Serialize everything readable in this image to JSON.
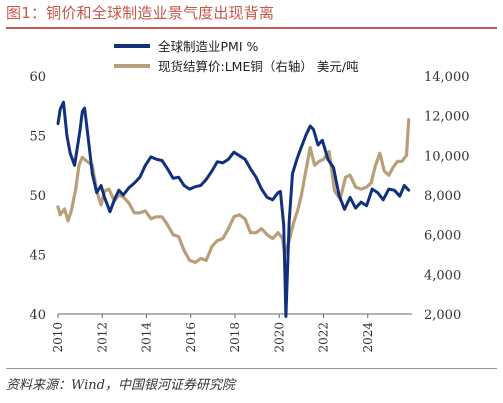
{
  "figure_title": "图1：铜价和全球制造业景气度出现背离",
  "source_note": "资料来源：Wind，中国银河证券研究院",
  "colors": {
    "pmi": "#12317c",
    "copper": "#b89f79",
    "title": "#c8564a"
  },
  "chart_data": {
    "type": "line",
    "title": "",
    "xlabel": "",
    "ylabel_left": "",
    "ylabel_right": "",
    "xlim": [
      2010,
      2026
    ],
    "x_ticks": [
      "2010",
      "2012",
      "2014",
      "2016",
      "2018",
      "2020",
      "2022",
      "2024"
    ],
    "ylim_left": [
      40,
      60
    ],
    "ylim_right": [
      2000,
      14000
    ],
    "y_left_ticks": [
      "40",
      "45",
      "50",
      "55",
      "60"
    ],
    "y_right_ticks": [
      "2,000",
      "4,000",
      "6,000",
      "8,000",
      "10,000",
      "12,000",
      "14,000"
    ],
    "grid": false,
    "legend_position": "top-center",
    "series": [
      {
        "name": "全球制造业PMI %",
        "axis": "left",
        "x": [
          2010.0,
          2010.1,
          2010.25,
          2010.4,
          2010.55,
          2010.75,
          2011.0,
          2011.1,
          2011.2,
          2011.35,
          2011.55,
          2011.75,
          2011.95,
          2012.1,
          2012.35,
          2012.55,
          2012.75,
          2012.95,
          2013.2,
          2013.45,
          2013.7,
          2013.95,
          2014.2,
          2014.45,
          2014.7,
          2014.95,
          2015.2,
          2015.45,
          2015.7,
          2015.95,
          2016.2,
          2016.45,
          2016.7,
          2016.95,
          2017.2,
          2017.45,
          2017.7,
          2017.95,
          2018.2,
          2018.45,
          2018.7,
          2018.95,
          2019.2,
          2019.45,
          2019.7,
          2019.95,
          2020.05,
          2020.2,
          2020.3,
          2020.45,
          2020.6,
          2020.8,
          2020.95,
          2021.2,
          2021.4,
          2021.55,
          2021.75,
          2021.95,
          2022.2,
          2022.45,
          2022.7,
          2022.95,
          2023.2,
          2023.45,
          2023.7,
          2023.95,
          2024.2,
          2024.45,
          2024.7,
          2024.95,
          2025.2,
          2025.45,
          2025.65,
          2025.85
        ],
        "y": [
          56.0,
          57.2,
          57.8,
          55.0,
          53.5,
          52.5,
          55.5,
          57.0,
          57.3,
          55.0,
          51.8,
          50.2,
          50.8,
          49.8,
          48.6,
          49.6,
          50.4,
          50.0,
          50.6,
          51.0,
          51.5,
          52.5,
          53.2,
          53.0,
          52.9,
          52.2,
          51.4,
          51.5,
          50.8,
          50.5,
          50.7,
          50.8,
          51.3,
          52.0,
          52.8,
          52.7,
          53.0,
          53.6,
          53.3,
          53.0,
          52.2,
          51.5,
          50.5,
          49.8,
          49.6,
          50.2,
          50.3,
          47.5,
          39.8,
          47.8,
          51.8,
          53.0,
          53.8,
          55.0,
          55.8,
          55.5,
          54.2,
          54.6,
          53.0,
          52.3,
          50.0,
          48.8,
          49.8,
          48.9,
          49.4,
          49.1,
          50.5,
          50.2,
          49.6,
          50.5,
          50.4,
          49.9,
          50.8,
          50.4
        ]
      },
      {
        "name": "现货结算价:LME铜（右轴） 美元/吨",
        "axis": "right",
        "x": [
          2010.0,
          2010.1,
          2010.3,
          2010.45,
          2010.6,
          2010.8,
          2010.95,
          2011.1,
          2011.3,
          2011.55,
          2011.75,
          2011.95,
          2012.1,
          2012.3,
          2012.55,
          2012.75,
          2012.95,
          2013.2,
          2013.45,
          2013.7,
          2013.95,
          2014.2,
          2014.45,
          2014.7,
          2014.95,
          2015.2,
          2015.45,
          2015.7,
          2015.95,
          2016.2,
          2016.45,
          2016.7,
          2016.95,
          2017.2,
          2017.45,
          2017.7,
          2017.95,
          2018.2,
          2018.45,
          2018.7,
          2018.95,
          2019.2,
          2019.45,
          2019.7,
          2019.95,
          2020.15,
          2020.25,
          2020.45,
          2020.65,
          2020.85,
          2021.0,
          2021.2,
          2021.4,
          2021.6,
          2021.8,
          2022.0,
          2022.25,
          2022.5,
          2022.75,
          2023.0,
          2023.2,
          2023.45,
          2023.7,
          2023.95,
          2024.15,
          2024.35,
          2024.55,
          2024.75,
          2024.95,
          2025.15,
          2025.35,
          2025.55,
          2025.75,
          2025.85
        ],
        "y": [
          7400,
          7000,
          7300,
          6700,
          7200,
          8300,
          9500,
          9900,
          9700,
          9500,
          8200,
          7500,
          8200,
          8300,
          7700,
          8000,
          7900,
          7600,
          7100,
          7100,
          7200,
          6800,
          6900,
          6900,
          6500,
          6000,
          5900,
          5200,
          4700,
          4600,
          4800,
          4700,
          5400,
          5700,
          5800,
          6300,
          6900,
          7000,
          6800,
          6100,
          6100,
          6300,
          6000,
          5800,
          6100,
          5800,
          5000,
          5700,
          6600,
          7300,
          8000,
          9200,
          10400,
          9500,
          9700,
          9800,
          10200,
          8200,
          7800,
          8900,
          9000,
          8400,
          8300,
          8400,
          8600,
          9500,
          10100,
          9200,
          9000,
          9400,
          9700,
          9700,
          10000,
          11800
        ]
      }
    ]
  }
}
